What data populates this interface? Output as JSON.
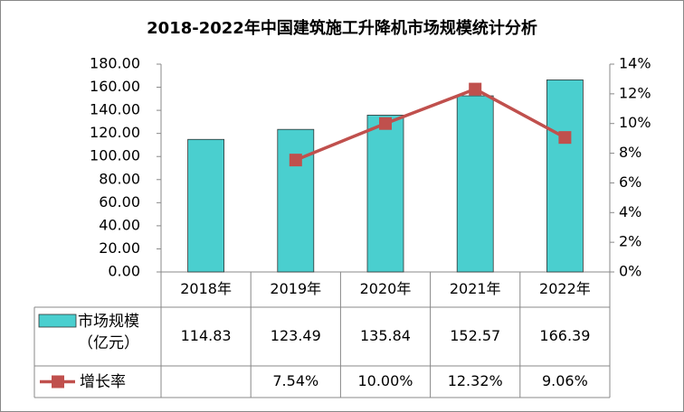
{
  "chart_data": {
    "type": "bar-line",
    "title": "2018-2022年中国建筑施工升降机市场规模统计分析",
    "categories": [
      "2018年",
      "2019年",
      "2020年",
      "2021年",
      "2022年"
    ],
    "series": [
      {
        "name": "市场规模（亿元）",
        "type": "bar",
        "color": "#4ACFCF",
        "values": [
          114.83,
          123.49,
          135.84,
          152.57,
          166.39
        ]
      },
      {
        "name": "增长率",
        "type": "line",
        "axis": "y2",
        "color": "#C0504D",
        "values": [
          null,
          7.54,
          10.0,
          12.32,
          9.06
        ],
        "value_labels": [
          null,
          "7.54%",
          "10.00%",
          "12.32%",
          "9.06%"
        ]
      }
    ],
    "ylim": [
      0,
      180
    ],
    "yticks": [
      {
        "value": 0,
        "label": "0.00"
      },
      {
        "value": 20,
        "label": "20.00"
      },
      {
        "value": 40,
        "label": "40.00"
      },
      {
        "value": 60,
        "label": "60.00"
      },
      {
        "value": 80,
        "label": "80.00"
      },
      {
        "value": 100,
        "label": "100.00"
      },
      {
        "value": 120,
        "label": "120.00"
      },
      {
        "value": 140,
        "label": "140.00"
      },
      {
        "value": 160,
        "label": "160.00"
      },
      {
        "value": 180,
        "label": "180.00"
      }
    ],
    "y2lim": [
      0,
      14
    ],
    "y2ticks": [
      {
        "value": 0,
        "label": "0%"
      },
      {
        "value": 2,
        "label": "2%"
      },
      {
        "value": 4,
        "label": "4%"
      },
      {
        "value": 6,
        "label": "6%"
      },
      {
        "value": 8,
        "label": "8%"
      },
      {
        "value": 10,
        "label": "10%"
      },
      {
        "value": 12,
        "label": "12%"
      },
      {
        "value": 14,
        "label": "14%"
      }
    ],
    "grid": false
  }
}
